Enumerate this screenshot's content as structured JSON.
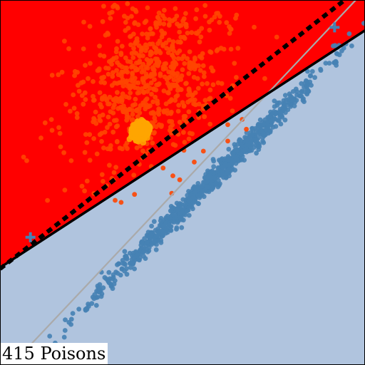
{
  "caption": "415 Poisons",
  "chart_data": {
    "type": "scatter",
    "title": "",
    "xlabel": "",
    "ylabel": "",
    "xlim": [
      -3,
      3
    ],
    "ylim": [
      -3,
      3
    ],
    "grid": false,
    "legend": "none",
    "colors": {
      "region_above": "#ff0000",
      "region_below": "#b0c4de",
      "class_blue": "#4682b4",
      "class_red": "#ff4500",
      "poison_cluster": "#ffa500",
      "boundary_solid": "#000000",
      "boundary_dashed": "#000000",
      "reference_line": "#aaaaaa"
    },
    "decision_boundary_solid": {
      "slope": 0.65,
      "intercept": 0.55
    },
    "decision_boundary_dashed": {
      "slope": 0.78,
      "intercept": 0.92
    },
    "reference_line": {
      "slope": 1.06,
      "intercept": -0.02
    },
    "class_centers": [
      {
        "name": "",
        "marker": "plus",
        "color": "#4682b4",
        "x": 2.5,
        "y": 2.55
      },
      {
        "name": "",
        "marker": "plus",
        "color": "#4682b4",
        "x": -2.5,
        "y": -0.9
      }
    ],
    "clusters": [
      {
        "class": "blue",
        "color": "#4682b4",
        "count": 900,
        "center": [
          0.45,
          0.02
        ],
        "direction": [
          0.707,
          0.707
        ],
        "spread_along": 1.3,
        "spread_across": 0.07,
        "seed": 11
      },
      {
        "class": "red",
        "color": "#ff4500",
        "count": 700,
        "center": [
          -0.55,
          1.65
        ],
        "direction": [
          0.6,
          0.8
        ],
        "spread_along": 0.75,
        "spread_across": 0.55,
        "seed": 23
      },
      {
        "class": "poison",
        "color": "#ffa500",
        "count": 415,
        "center": [
          -0.7,
          0.85
        ],
        "direction": [
          0.707,
          0.707
        ],
        "spread_along": 0.07,
        "spread_across": 0.06,
        "seed": 37
      }
    ]
  }
}
